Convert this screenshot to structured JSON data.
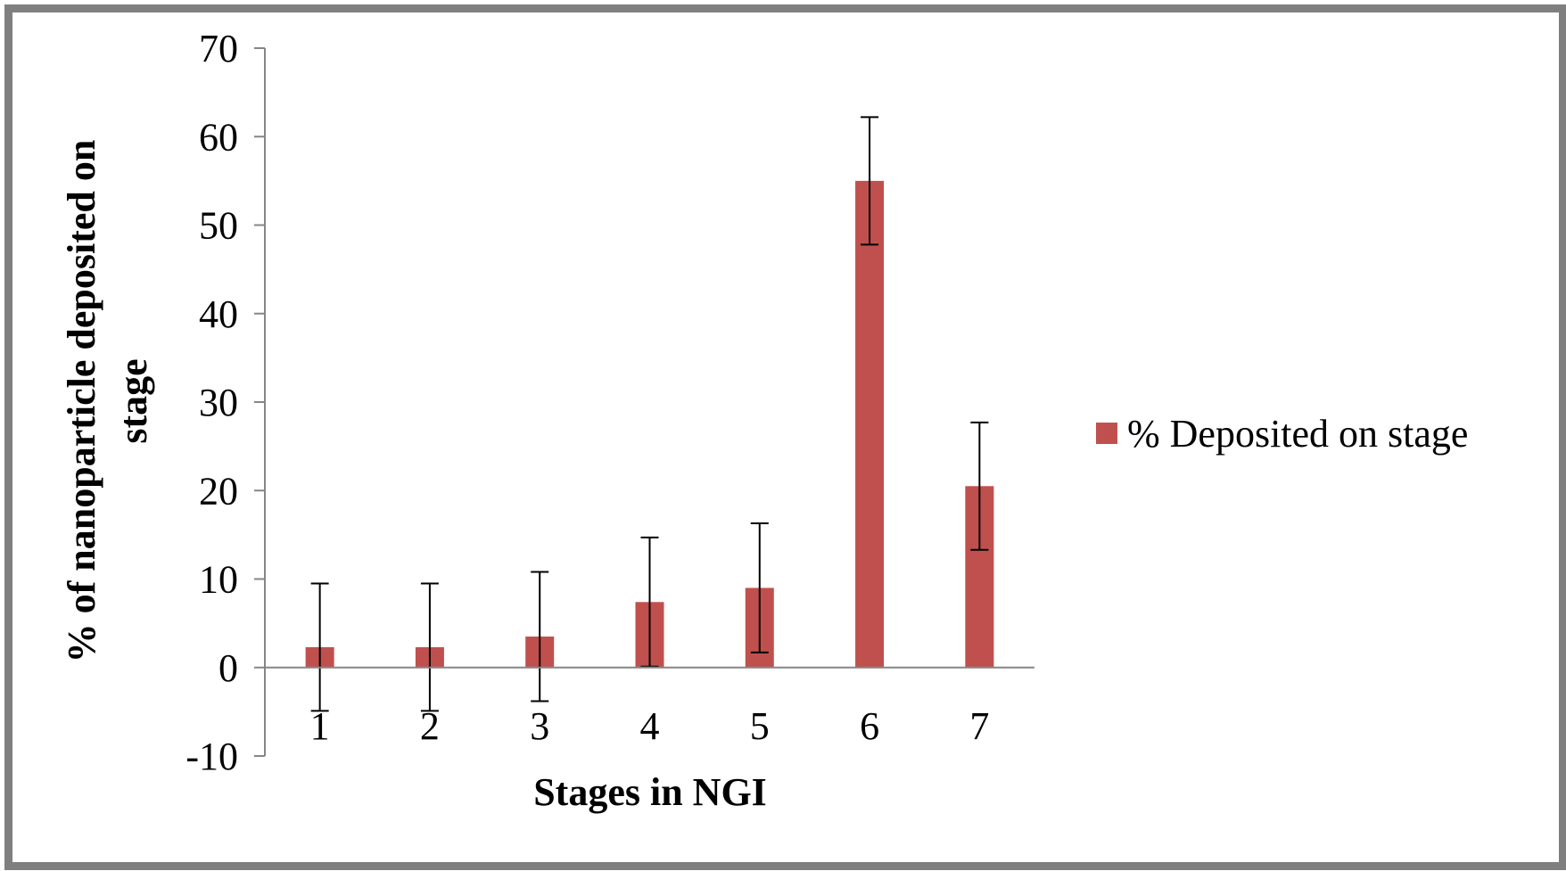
{
  "chart_data": {
    "type": "bar",
    "title": "",
    "xlabel": "Stages in NGI",
    "ylabel": "% of nanoparticle deposited on stage",
    "ylabel_lines": [
      "% of nanoparticle deposited on",
      "stage"
    ],
    "ylim": [
      -10,
      70
    ],
    "yticks": [
      -10,
      0,
      10,
      20,
      30,
      40,
      50,
      60,
      70
    ],
    "categories": [
      "1",
      "2",
      "3",
      "4",
      "5",
      "6",
      "7"
    ],
    "series": [
      {
        "name": "% Deposited on stage",
        "color": "#c0504d",
        "values": [
          2.3,
          2.3,
          3.5,
          7.4,
          9.0,
          55.0,
          20.5
        ],
        "error": [
          7.2,
          7.2,
          7.3,
          7.3,
          7.3,
          7.2,
          7.2
        ]
      }
    ],
    "legend_position": "right",
    "grid": false
  }
}
